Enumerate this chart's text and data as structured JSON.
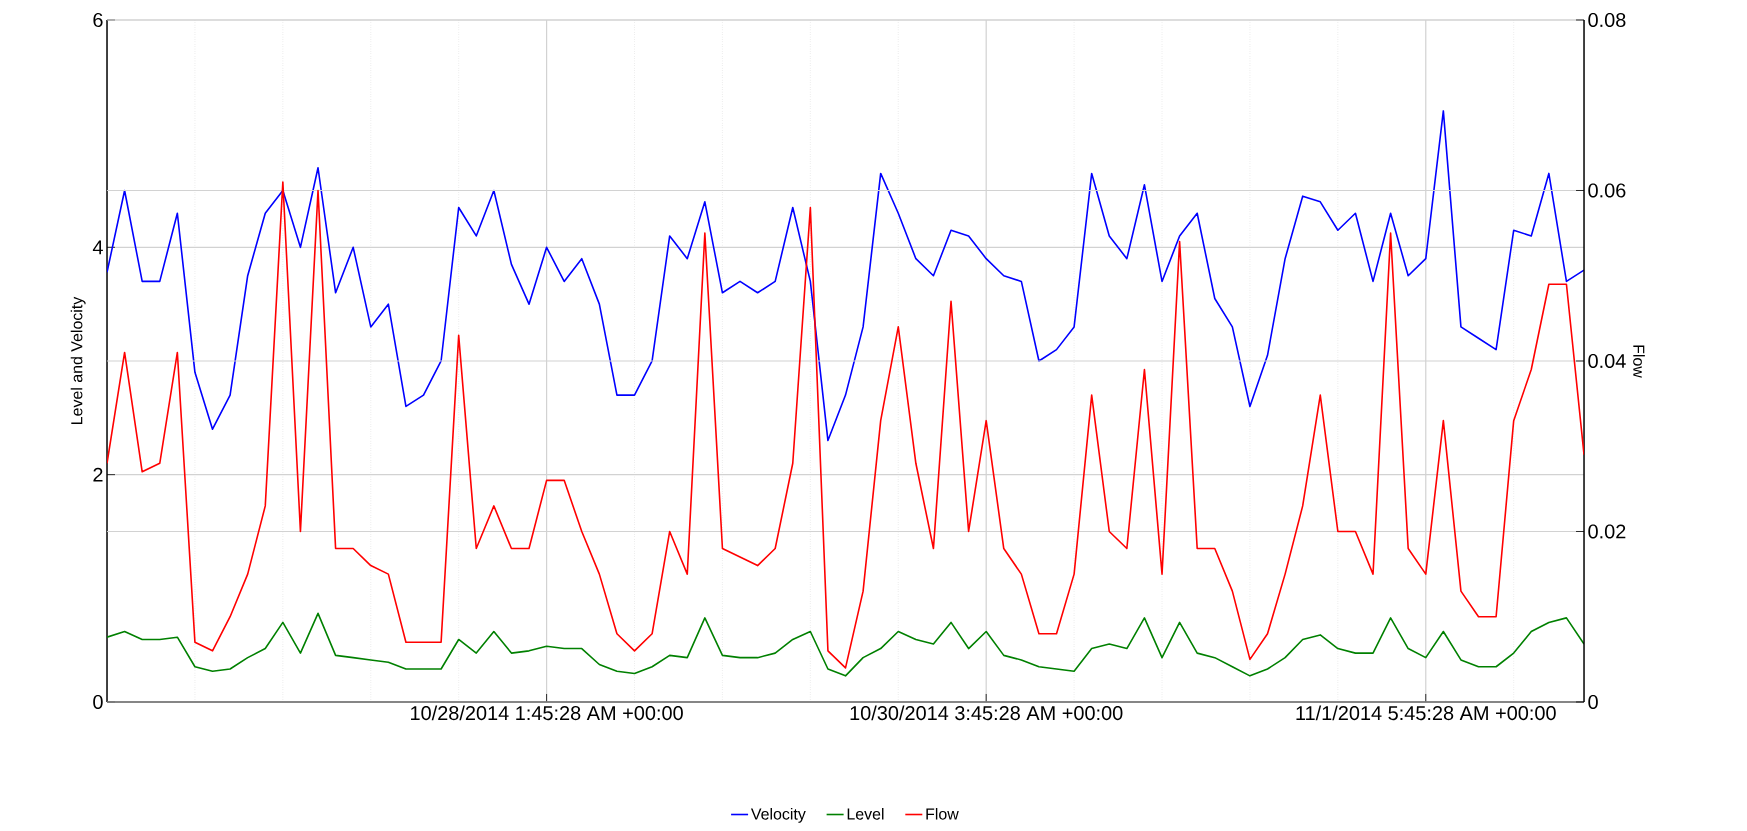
{
  "chart_data": {
    "type": "line",
    "ylabel": "Level and Velocity",
    "y2label": "Flow",
    "x": [
      "2014-10-25T23:45",
      "2014-10-26T01:45",
      "2014-10-26T03:45",
      "2014-10-26T05:45",
      "2014-10-26T07:45",
      "2014-10-26T09:45",
      "2014-10-26T11:45",
      "2014-10-26T13:45",
      "2014-10-26T15:45",
      "2014-10-26T17:45",
      "2014-10-26T19:45",
      "2014-10-26T21:45",
      "2014-10-26T23:45",
      "2014-10-27T01:45",
      "2014-10-27T03:45",
      "2014-10-27T05:45",
      "2014-10-27T07:45",
      "2014-10-27T09:45",
      "2014-10-27T11:45",
      "2014-10-27T13:45",
      "2014-10-27T15:45",
      "2014-10-27T17:45",
      "2014-10-27T19:45",
      "2014-10-27T21:45",
      "2014-10-27T23:45",
      "2014-10-28T01:45",
      "2014-10-28T03:45",
      "2014-10-28T05:45",
      "2014-10-28T07:45",
      "2014-10-28T09:45",
      "2014-10-28T11:45",
      "2014-10-28T13:45",
      "2014-10-28T15:45",
      "2014-10-28T17:45",
      "2014-10-28T19:45",
      "2014-10-28T21:45",
      "2014-10-28T23:45",
      "2014-10-29T01:45",
      "2014-10-29T03:45",
      "2014-10-29T05:45",
      "2014-10-29T07:45",
      "2014-10-29T09:45",
      "2014-10-29T11:45",
      "2014-10-29T13:45",
      "2014-10-29T15:45",
      "2014-10-29T17:45",
      "2014-10-29T19:45",
      "2014-10-29T21:45",
      "2014-10-29T23:45",
      "2014-10-30T01:45",
      "2014-10-30T03:45",
      "2014-10-30T05:45",
      "2014-10-30T07:45",
      "2014-10-30T09:45",
      "2014-10-30T11:45",
      "2014-10-30T13:45",
      "2014-10-30T15:45",
      "2014-10-30T17:45",
      "2014-10-30T19:45",
      "2014-10-30T21:45",
      "2014-10-30T23:45",
      "2014-10-31T01:45",
      "2014-10-31T03:45",
      "2014-10-31T05:45",
      "2014-10-31T07:45",
      "2014-10-31T09:45",
      "2014-10-31T11:45",
      "2014-10-31T13:45",
      "2014-10-31T15:45",
      "2014-10-31T17:45",
      "2014-10-31T19:45",
      "2014-10-31T21:45",
      "2014-10-31T23:45",
      "2014-11-01T01:45",
      "2014-11-01T03:45",
      "2014-11-01T05:45",
      "2014-11-01T07:45",
      "2014-11-01T09:45",
      "2014-11-01T11:45",
      "2014-11-01T13:45",
      "2014-11-01T15:45",
      "2014-11-01T17:45",
      "2014-11-01T19:45",
      "2014-11-01T21:45",
      "2014-11-01T23:45"
    ],
    "series": [
      {
        "name": "Velocity",
        "color": "#0000ff",
        "values": [
          3.78,
          4.5,
          3.7,
          3.7,
          4.3,
          2.9,
          2.4,
          2.7,
          3.75,
          4.3,
          4.5,
          4.0,
          4.7,
          3.6,
          4.0,
          3.3,
          3.5,
          2.6,
          2.7,
          3.0,
          4.35,
          4.1,
          4.5,
          3.85,
          3.5,
          4.0,
          3.7,
          3.9,
          3.5,
          2.7,
          2.7,
          3.0,
          4.1,
          3.9,
          4.4,
          3.6,
          3.7,
          3.6,
          3.7,
          4.35,
          3.7,
          2.3,
          2.7,
          3.3,
          4.65,
          4.3,
          3.9,
          3.75,
          4.15,
          4.1,
          3.9,
          3.75,
          3.7,
          3.0,
          3.1,
          3.3,
          4.65,
          4.1,
          3.9,
          4.55,
          3.7,
          4.1,
          4.3,
          3.55,
          3.3,
          2.6,
          3.05,
          3.9,
          4.45,
          4.4,
          4.15,
          4.3,
          3.7,
          4.3,
          3.75,
          3.9,
          5.2,
          3.3,
          3.2,
          3.1,
          4.15,
          4.1,
          4.65,
          3.7,
          3.8
        ]
      },
      {
        "name": "Level",
        "color": "#008000",
        "values": [
          0.57,
          0.62,
          0.55,
          0.55,
          0.57,
          0.31,
          0.27,
          0.29,
          0.39,
          0.47,
          0.7,
          0.43,
          0.78,
          0.41,
          0.39,
          0.37,
          0.35,
          0.29,
          0.29,
          0.29,
          0.55,
          0.43,
          0.62,
          0.43,
          0.45,
          0.49,
          0.47,
          0.47,
          0.33,
          0.27,
          0.25,
          0.31,
          0.41,
          0.39,
          0.74,
          0.41,
          0.39,
          0.39,
          0.43,
          0.55,
          0.62,
          0.29,
          0.23,
          0.39,
          0.47,
          0.62,
          0.55,
          0.51,
          0.7,
          0.47,
          0.62,
          0.41,
          0.37,
          0.31,
          0.29,
          0.27,
          0.47,
          0.51,
          0.47,
          0.74,
          0.39,
          0.7,
          0.43,
          0.39,
          0.31,
          0.23,
          0.29,
          0.39,
          0.55,
          0.59,
          0.47,
          0.43,
          0.43,
          0.74,
          0.47,
          0.39,
          0.62,
          0.37,
          0.31,
          0.31,
          0.43,
          0.62,
          0.7,
          0.74,
          0.51
        ]
      },
      {
        "name": "Flow",
        "color": "#ff0000",
        "axis": "y2",
        "values": [
          0.028,
          0.041,
          0.027,
          0.028,
          0.041,
          0.007,
          0.006,
          0.01,
          0.015,
          0.023,
          0.061,
          0.02,
          0.06,
          0.018,
          0.018,
          0.016,
          0.015,
          0.007,
          0.007,
          0.007,
          0.043,
          0.018,
          0.023,
          0.018,
          0.018,
          0.026,
          0.026,
          0.02,
          0.015,
          0.008,
          0.006,
          0.008,
          0.02,
          0.015,
          0.055,
          0.018,
          0.017,
          0.016,
          0.018,
          0.028,
          0.058,
          0.006,
          0.004,
          0.013,
          0.033,
          0.044,
          0.028,
          0.018,
          0.047,
          0.02,
          0.033,
          0.018,
          0.015,
          0.008,
          0.008,
          0.015,
          0.036,
          0.02,
          0.018,
          0.039,
          0.015,
          0.054,
          0.018,
          0.018,
          0.013,
          0.005,
          0.008,
          0.015,
          0.023,
          0.036,
          0.02,
          0.02,
          0.015,
          0.055,
          0.018,
          0.015,
          0.033,
          0.013,
          0.01,
          0.01,
          0.033,
          0.039,
          0.049,
          0.049,
          0.029
        ]
      }
    ],
    "xlim": [
      "2014-10-25T23:45",
      "2014-11-01T23:45"
    ],
    "xticks": [
      {
        "value": "2014-10-26T09:45",
        "label": null
      },
      {
        "value": "2014-10-26T19:45",
        "label": null
      },
      {
        "value": "2014-10-27T05:45",
        "label": null
      },
      {
        "value": "2014-10-27T15:45",
        "label": null
      },
      {
        "value": "2014-10-28T01:45",
        "label": "10/28/2014 1:45:28 AM +00:00"
      },
      {
        "value": "2014-10-28T11:45",
        "label": null
      },
      {
        "value": "2014-10-28T21:45",
        "label": null
      },
      {
        "value": "2014-10-29T07:45",
        "label": null
      },
      {
        "value": "2014-10-29T17:45",
        "label": null
      },
      {
        "value": "2014-10-30T03:45",
        "label": "10/30/2014 3:45:28 AM +00:00"
      },
      {
        "value": "2014-10-30T13:45",
        "label": null
      },
      {
        "value": "2014-10-30T23:45",
        "label": null
      },
      {
        "value": "2014-10-31T09:45",
        "label": null
      },
      {
        "value": "2014-10-31T19:45",
        "label": null
      },
      {
        "value": "2014-11-01T05:45",
        "label": "11/1/2014 5:45:28 AM +00:00"
      },
      {
        "value": "2014-11-01T15:45",
        "label": null
      }
    ],
    "ylim": [
      0,
      6
    ],
    "yticks": [
      0,
      2,
      4,
      6
    ],
    "y2lim": [
      0,
      0.08
    ],
    "y2ticks": [
      0,
      0.02,
      0.04,
      0.06,
      0.08
    ],
    "grid": true,
    "legend": "bottom",
    "line_style": "solid"
  }
}
